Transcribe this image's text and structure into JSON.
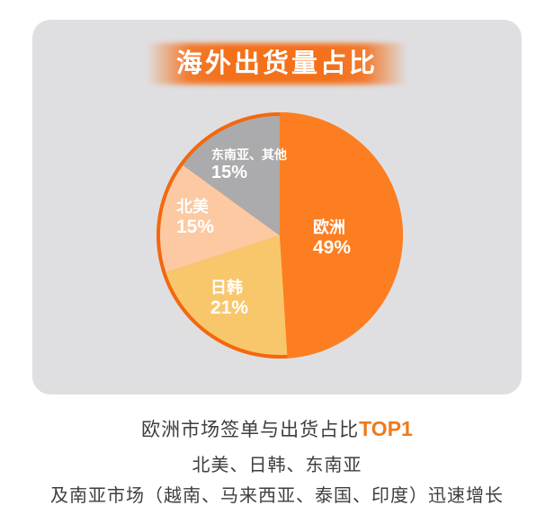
{
  "banner": {
    "title": "海外出货量占比"
  },
  "chart_data": {
    "type": "pie",
    "title": "海外出货量占比",
    "start_angle_deg": 0,
    "direction": "clockwise",
    "legend": "none",
    "ring_color": "#f3680e",
    "slices": [
      {
        "name": "europe",
        "label": "欧洲",
        "value": 49,
        "display": "49%",
        "color": "#fd7e20"
      },
      {
        "name": "japan-korea",
        "label": "日韩",
        "value": 21,
        "display": "21%",
        "color": "#f9c76b"
      },
      {
        "name": "north-america",
        "label": "北美",
        "value": 15,
        "display": "15%",
        "color": "#fcc9a2"
      },
      {
        "name": "southeast-asia-others",
        "label": "东南亚、其他",
        "value": 15,
        "display": "15%",
        "color": "#ababad"
      }
    ]
  },
  "footer": {
    "line1_text": "欧洲市场签单与出货占比",
    "line1_highlight": "TOP1",
    "line2": "北美、日韩、东南亚",
    "line3": "及南亚市场（越南、马来西亚、泰国、印度）迅速增长"
  },
  "colors": {
    "card_background": "#dfdfe2",
    "banner_orange": "#f4701a",
    "highlight_orange": "#ef7a1a",
    "text_dark": "#3e3e40",
    "label_white": "#ffffff"
  }
}
